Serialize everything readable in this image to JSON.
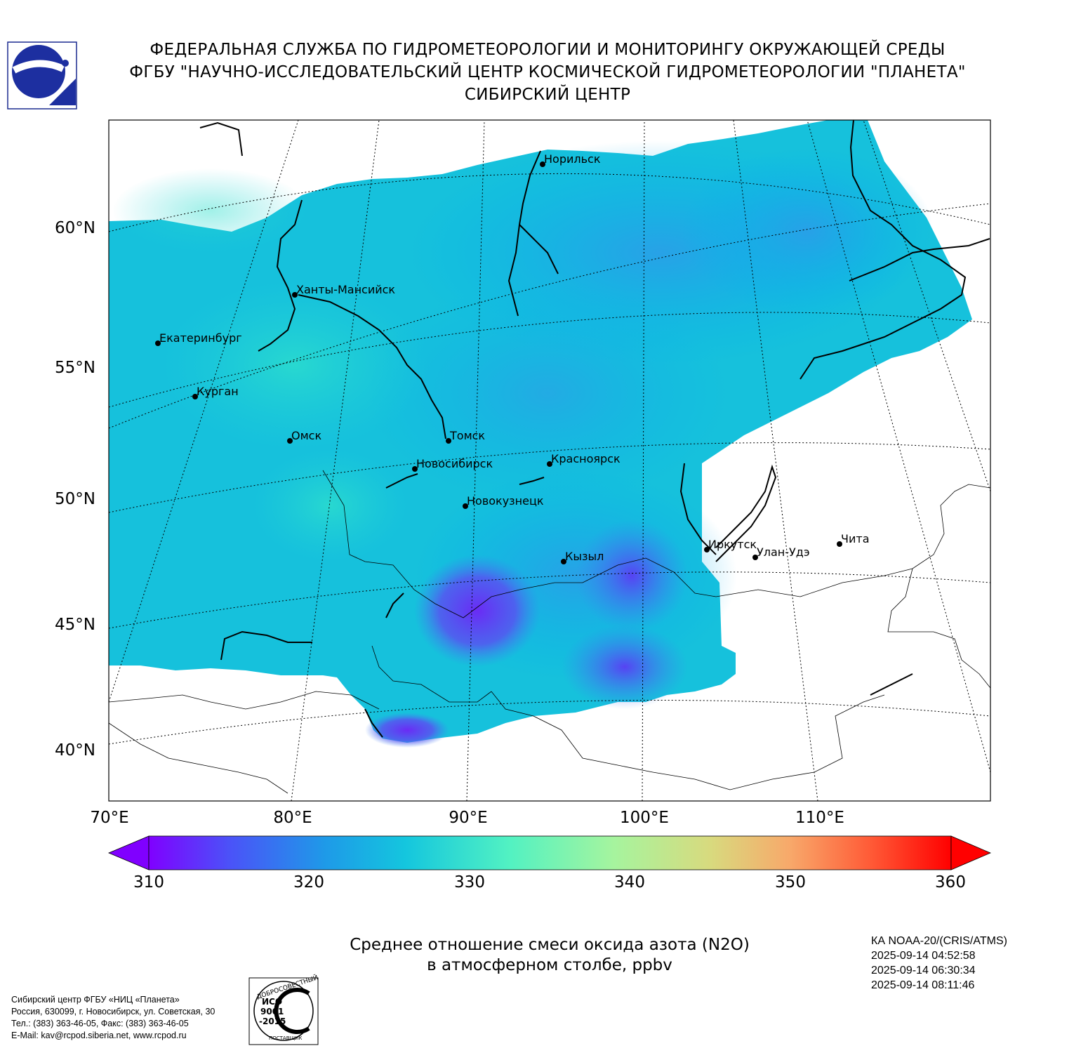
{
  "header": {
    "line1": "ФЕДЕРАЛЬНАЯ СЛУЖБА ПО ГИДРОМЕТЕОРОЛОГИИ И МОНИТОРИНГУ ОКРУЖАЮЩЕЙ СРЕДЫ",
    "line2": "ФГБУ \"НАУЧНО-ИССЛЕДОВАТЕЛЬСКИЙ ЦЕНТР КОСМИЧЕСКОЙ ГИДРОМЕТЕОРОЛОГИИ \"ПЛАНЕТА\"",
    "line3": "СИБИРСКИЙ ЦЕНТР"
  },
  "map": {
    "lat_labels": [
      "60°N",
      "55°N",
      "50°N",
      "45°N",
      "40°N"
    ],
    "lon_labels": [
      "70°E",
      "80°E",
      "90°E",
      "100°E",
      "110°E"
    ],
    "cities": [
      {
        "name": "Норильск",
        "lon": 88.2,
        "lat": 69.35
      },
      {
        "name": "Ханты-Мансийск",
        "lon": 69.0,
        "lat": 61.0
      },
      {
        "name": "Екатеринбург",
        "lon": 60.6,
        "lat": 56.8
      },
      {
        "name": "Курган",
        "lon": 65.3,
        "lat": 55.4
      },
      {
        "name": "Омск",
        "lon": 73.4,
        "lat": 55.0
      },
      {
        "name": "Томск",
        "lon": 84.9,
        "lat": 56.5
      },
      {
        "name": "Новосибирск",
        "lon": 82.9,
        "lat": 55.0
      },
      {
        "name": "Красноярск",
        "lon": 92.9,
        "lat": 56.0
      },
      {
        "name": "Новокузнецк",
        "lon": 87.1,
        "lat": 53.8
      },
      {
        "name": "Иркутск",
        "lon": 104.3,
        "lat": 52.3
      },
      {
        "name": "Кызыл",
        "lon": 94.4,
        "lat": 51.7
      },
      {
        "name": "Улан-Удэ",
        "lon": 107.6,
        "lat": 51.8
      },
      {
        "name": "Чита",
        "lon": 113.5,
        "lat": 52.0
      }
    ],
    "colors": {
      "land_outline": "#000000",
      "graticule": "#000000"
    }
  },
  "colorbar": {
    "min": 310,
    "max": 360,
    "ticks": [
      "310",
      "320",
      "330",
      "340",
      "350",
      "360"
    ],
    "colormap": "rainbow",
    "extend": "both"
  },
  "caption": {
    "line1": "Среднее отношение смеси оксида азота (N2O)",
    "line2": "в атмосферном столбе, ppbv"
  },
  "satellite": {
    "name": "КА NOAA-20/(CRIS/ATMS)",
    "times": [
      "2025-09-14 04:52:58",
      "2025-09-14 06:30:34",
      "2025-09-14 08:11:46"
    ]
  },
  "footer": {
    "line1": "Сибирский центр ФГБУ «НИЦ «Планета»",
    "line2": "Россия, 630099, г. Новосибирск, ул. Советская, 30",
    "line3": "Тел.: (383) 363-46-05, Факс: (383) 363-46-05",
    "line4": "E-Mail: kav@rcpod.siberia.net, www.rcpod.ru"
  },
  "iso_badge": {
    "top_text": "ДОБРОСОВЕСТНЫЙ",
    "center_text_1": "ИСО",
    "center_text_2": "9001",
    "center_text_3": "-2015",
    "bottom_text": "ПОСТАВЩИК"
  }
}
